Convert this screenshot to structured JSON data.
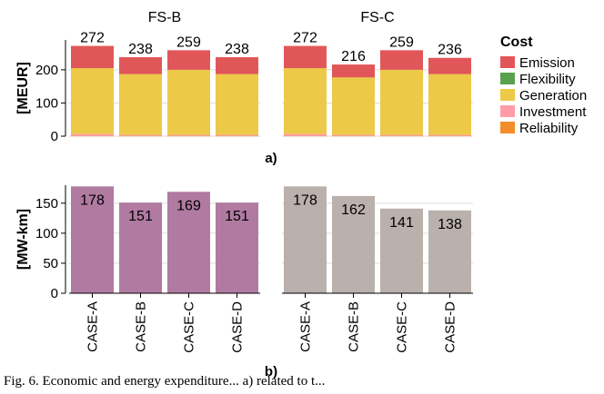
{
  "chart_data": [
    {
      "type": "bar",
      "stacked": true,
      "panel_label": "a)",
      "ylabel": "[MEUR]",
      "ylim": [
        0,
        290
      ],
      "yticks": [
        0,
        100,
        200
      ],
      "grid": true,
      "legend": {
        "title": "Cost",
        "placement": "right",
        "entries": [
          "Emission",
          "Flexibility",
          "Generation",
          "Investment",
          "Reliability"
        ]
      },
      "colors": {
        "Emission": "#e15759",
        "Flexibility": "#59a14f",
        "Generation": "#edc948",
        "Investment": "#ff9da7",
        "Reliability": "#f28e2b"
      },
      "categories": [
        "CASE-A",
        "CASE-B",
        "CASE-C",
        "CASE-D"
      ],
      "facets": [
        {
          "title": "FS-B",
          "totals": [
            272,
            238,
            259,
            238
          ],
          "series": [
            {
              "name": "Reliability",
              "values": [
                1,
                1,
                1,
                1
              ]
            },
            {
              "name": "Investment",
              "values": [
                6,
                3,
                3,
                3
              ]
            },
            {
              "name": "Generation",
              "values": [
                198,
                183,
                196,
                183
              ]
            },
            {
              "name": "Flexibility",
              "values": [
                0,
                0,
                0,
                0
              ]
            },
            {
              "name": "Emission",
              "values": [
                67,
                51,
                59,
                51
              ]
            }
          ]
        },
        {
          "title": "FS-C",
          "totals": [
            272,
            216,
            259,
            236
          ],
          "series": [
            {
              "name": "Reliability",
              "values": [
                1,
                1,
                1,
                1
              ]
            },
            {
              "name": "Investment",
              "values": [
                6,
                3,
                3,
                3
              ]
            },
            {
              "name": "Generation",
              "values": [
                198,
                173,
                196,
                183
              ]
            },
            {
              "name": "Flexibility",
              "values": [
                0,
                0,
                0,
                0
              ]
            },
            {
              "name": "Emission",
              "values": [
                67,
                39,
                59,
                49
              ]
            }
          ]
        }
      ]
    },
    {
      "type": "bar",
      "panel_label": "b)",
      "ylabel": "[MW-km]",
      "ylim": [
        0,
        180
      ],
      "yticks": [
        0,
        50,
        100,
        150
      ],
      "grid": true,
      "categories": [
        "CASE-A",
        "CASE-B",
        "CASE-C",
        "CASE-D"
      ],
      "facets": [
        {
          "color": "#b07aa1",
          "values": [
            178,
            151,
            169,
            151
          ]
        },
        {
          "color": "#bab0ac",
          "values": [
            178,
            162,
            141,
            138
          ]
        }
      ]
    }
  ],
  "caption": "Fig. 6.   Economic and energy expenditure...  a) related to t..."
}
